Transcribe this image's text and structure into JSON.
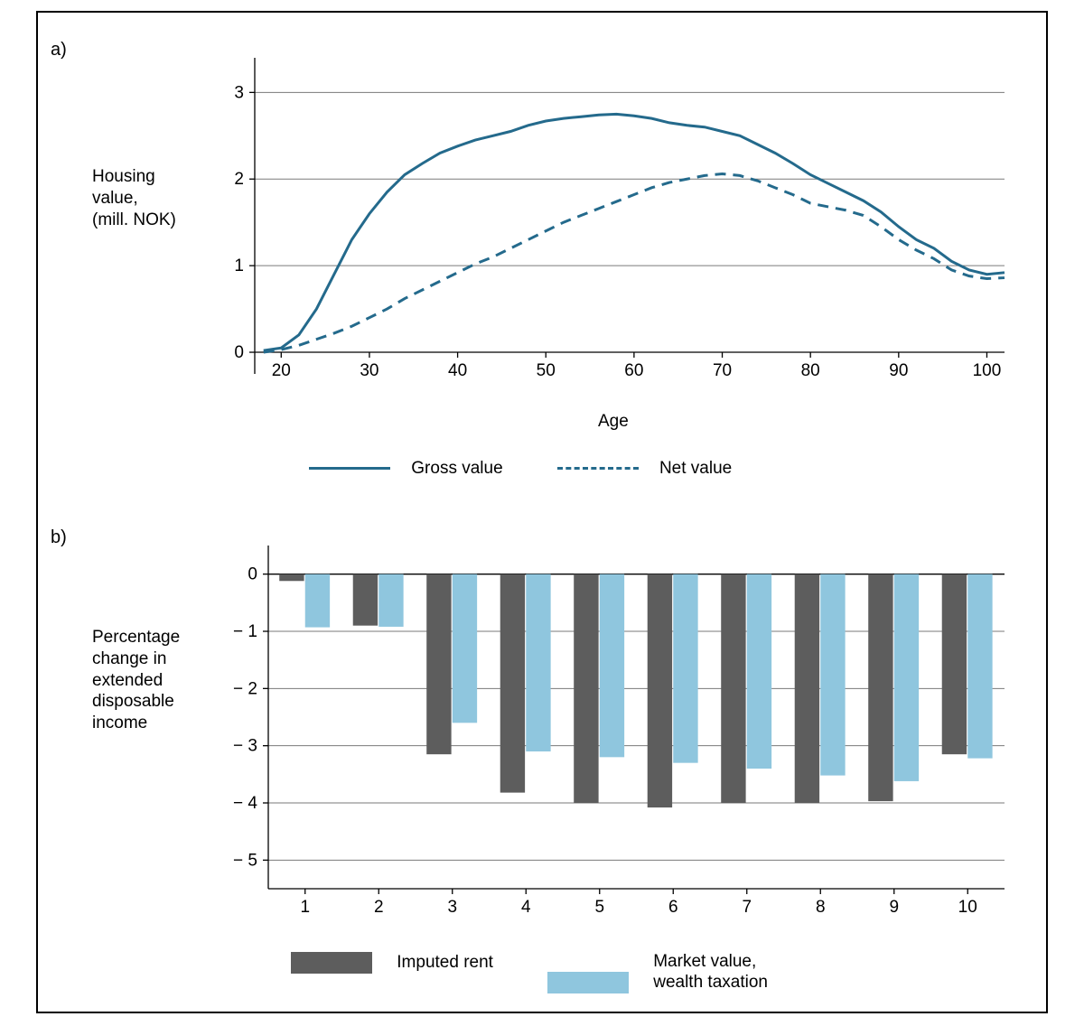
{
  "frame": {
    "border_color": "#000000",
    "background_color": "#ffffff"
  },
  "panel_a": {
    "label": "a)",
    "type": "line",
    "y_label_lines": [
      "Housing",
      "value,",
      "(mill. NOK)"
    ],
    "x_label": "Age",
    "xlim": [
      17,
      102
    ],
    "ylim": [
      -0.25,
      3.4
    ],
    "xticks": [
      20,
      30,
      40,
      50,
      60,
      70,
      80,
      90,
      100
    ],
    "yticks": [
      0,
      1,
      2,
      3
    ],
    "grid_color": "#7a7a7a",
    "axis_color": "#000000",
    "tick_fontsize": 19,
    "label_fontsize": 19,
    "series": [
      {
        "name": "Gross value",
        "color": "#246a8c",
        "dash": "none",
        "width": 3,
        "points": [
          [
            18,
            0.02
          ],
          [
            20,
            0.05
          ],
          [
            22,
            0.2
          ],
          [
            24,
            0.5
          ],
          [
            26,
            0.9
          ],
          [
            28,
            1.3
          ],
          [
            30,
            1.6
          ],
          [
            32,
            1.85
          ],
          [
            34,
            2.05
          ],
          [
            36,
            2.18
          ],
          [
            38,
            2.3
          ],
          [
            40,
            2.38
          ],
          [
            42,
            2.45
          ],
          [
            44,
            2.5
          ],
          [
            46,
            2.55
          ],
          [
            48,
            2.62
          ],
          [
            50,
            2.67
          ],
          [
            52,
            2.7
          ],
          [
            54,
            2.72
          ],
          [
            56,
            2.74
          ],
          [
            58,
            2.75
          ],
          [
            60,
            2.73
          ],
          [
            62,
            2.7
          ],
          [
            64,
            2.65
          ],
          [
            66,
            2.62
          ],
          [
            68,
            2.6
          ],
          [
            70,
            2.55
          ],
          [
            72,
            2.5
          ],
          [
            74,
            2.4
          ],
          [
            76,
            2.3
          ],
          [
            78,
            2.18
          ],
          [
            80,
            2.05
          ],
          [
            82,
            1.95
          ],
          [
            84,
            1.85
          ],
          [
            86,
            1.75
          ],
          [
            88,
            1.62
          ],
          [
            90,
            1.45
          ],
          [
            92,
            1.3
          ],
          [
            94,
            1.2
          ],
          [
            96,
            1.05
          ],
          [
            98,
            0.95
          ],
          [
            100,
            0.9
          ],
          [
            102,
            0.92
          ]
        ]
      },
      {
        "name": "Net value",
        "color": "#246a8c",
        "dash": "12,8",
        "width": 3,
        "points": [
          [
            18,
            0.0
          ],
          [
            20,
            0.03
          ],
          [
            22,
            0.08
          ],
          [
            24,
            0.15
          ],
          [
            26,
            0.22
          ],
          [
            28,
            0.3
          ],
          [
            30,
            0.4
          ],
          [
            32,
            0.5
          ],
          [
            34,
            0.62
          ],
          [
            36,
            0.72
          ],
          [
            38,
            0.82
          ],
          [
            40,
            0.92
          ],
          [
            42,
            1.02
          ],
          [
            44,
            1.1
          ],
          [
            46,
            1.2
          ],
          [
            48,
            1.3
          ],
          [
            50,
            1.4
          ],
          [
            52,
            1.5
          ],
          [
            54,
            1.58
          ],
          [
            56,
            1.66
          ],
          [
            58,
            1.74
          ],
          [
            60,
            1.82
          ],
          [
            62,
            1.9
          ],
          [
            64,
            1.96
          ],
          [
            66,
            2.0
          ],
          [
            68,
            2.04
          ],
          [
            70,
            2.06
          ],
          [
            72,
            2.04
          ],
          [
            74,
            1.98
          ],
          [
            76,
            1.9
          ],
          [
            78,
            1.82
          ],
          [
            80,
            1.72
          ],
          [
            82,
            1.68
          ],
          [
            84,
            1.64
          ],
          [
            86,
            1.58
          ],
          [
            88,
            1.45
          ],
          [
            90,
            1.3
          ],
          [
            92,
            1.18
          ],
          [
            94,
            1.08
          ],
          [
            96,
            0.95
          ],
          [
            98,
            0.88
          ],
          [
            100,
            0.85
          ],
          [
            102,
            0.86
          ]
        ]
      }
    ],
    "legend": [
      {
        "label": "Gross value",
        "dash": "none",
        "color": "#246a8c"
      },
      {
        "label": "Net value",
        "dash": "dashed",
        "color": "#246a8c"
      }
    ]
  },
  "panel_b": {
    "label": "b)",
    "type": "bar",
    "y_label_lines": [
      "Percentage",
      "change in",
      "extended",
      "disposable",
      "income"
    ],
    "categories": [
      "1",
      "2",
      "3",
      "4",
      "5",
      "6",
      "7",
      "8",
      "9",
      "10"
    ],
    "ylim": [
      -5.5,
      0.5
    ],
    "yticks": [
      0,
      -1,
      -2,
      -3,
      -4,
      -5
    ],
    "ytick_labels": [
      "0",
      "− 1",
      "− 2",
      "− 3",
      "− 4",
      "− 5"
    ],
    "grid_color": "#7a7a7a",
    "axis_color": "#000000",
    "tick_fontsize": 19,
    "label_fontsize": 19,
    "bar_group_width": 0.7,
    "series": [
      {
        "name": "Imputed rent",
        "color": "#5d5d5d",
        "values": [
          -0.12,
          -0.9,
          -3.15,
          -3.82,
          -4.0,
          -4.08,
          -4.0,
          -4.0,
          -3.97,
          -3.15
        ]
      },
      {
        "name": "Market value, wealth taxation",
        "color": "#8fc6de",
        "values": [
          -0.93,
          -0.92,
          -2.6,
          -3.1,
          -3.2,
          -3.3,
          -3.4,
          -3.52,
          -3.62,
          -3.22
        ]
      }
    ],
    "legend": [
      {
        "label": "Imputed rent",
        "color": "#5d5d5d",
        "multiline": false
      },
      {
        "label_lines": [
          "Market value,",
          "wealth taxation"
        ],
        "color": "#8fc6de",
        "multiline": true
      }
    ]
  }
}
